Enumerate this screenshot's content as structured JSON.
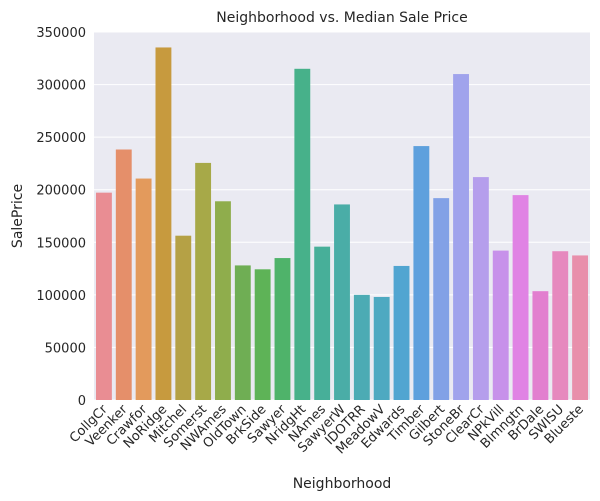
{
  "chart_data": {
    "type": "bar",
    "title": "Neighborhood vs. Median Sale Price",
    "xlabel": "Neighborhood",
    "ylabel": "SalePrice",
    "ylim": [
      0,
      350000
    ],
    "yticks": [
      0,
      50000,
      100000,
      150000,
      200000,
      250000,
      300000,
      350000
    ],
    "grid": true,
    "categories": [
      "CollgCr",
      "Veenker",
      "Crawfor",
      "NoRidge",
      "Mitchel",
      "Somerst",
      "NWAmes",
      "OldTown",
      "BrkSide",
      "Sawyer",
      "NridgHt",
      "NAmes",
      "SawyerW",
      "IDOTRR",
      "MeadowV",
      "Edwards",
      "Timber",
      "Gilbert",
      "StoneBr",
      "ClearCr",
      "NPkVill",
      "Blmngtn",
      "BrDale",
      "SWISU",
      "Blueste"
    ],
    "values": [
      197200,
      238250,
      210624,
      335295,
      156270,
      225500,
      189000,
      128000,
      124300,
      135000,
      315000,
      145847,
      186000,
      100000,
      98000,
      127500,
      241500,
      192000,
      310000,
      212000,
      142100,
      194870,
      103500,
      141500,
      137500
    ],
    "colors": [
      "#e98d93",
      "#e58f6a",
      "#e39a5c",
      "#c79a3e",
      "#b5a145",
      "#a7a948",
      "#8fad4c",
      "#6fae54",
      "#5eb357",
      "#4fb36a",
      "#47b18a",
      "#47af99",
      "#4aada7",
      "#4cabb4",
      "#4ea9c1",
      "#51a5d1",
      "#5ea0dd",
      "#82a1e6",
      "#a0a3ec",
      "#b59eec",
      "#c791ea",
      "#e083e4",
      "#e27fcf",
      "#e689be",
      "#e88fab"
    ]
  }
}
